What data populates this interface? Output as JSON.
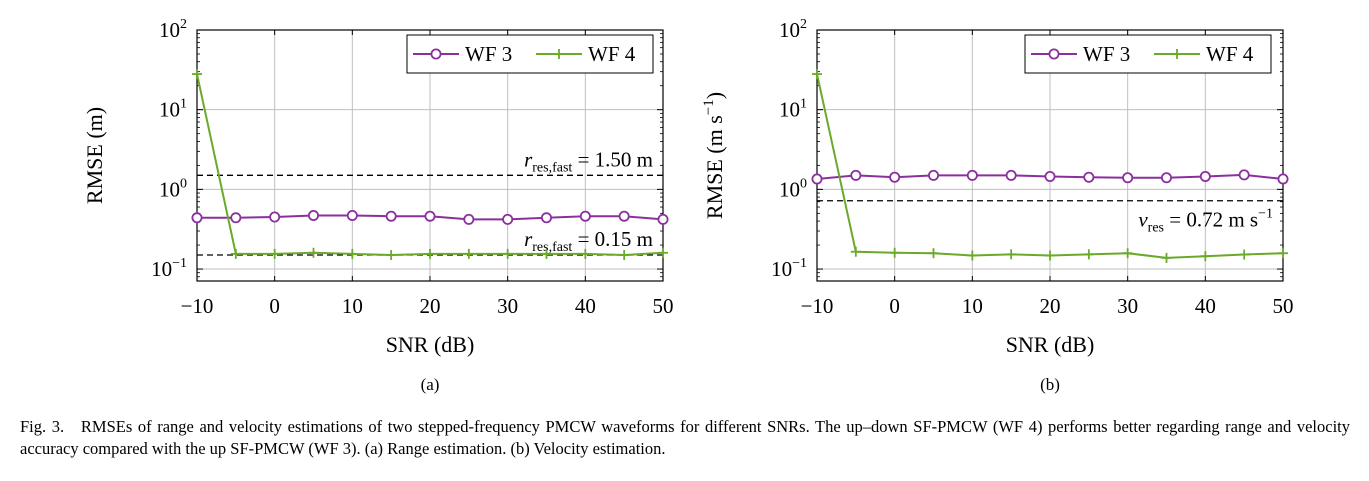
{
  "figure_label": "Fig. 3.",
  "caption": "RMSEs of range and velocity estimations of two stepped-frequency PMCW waveforms for different SNRs. The up–down SF-PMCW (WF 4) performs better regarding range and velocity accuracy compared with the up SF-PMCW (WF 3). (a) Range estimation. (b) Velocity estimation.",
  "colors": {
    "wf3": "#8b2f9e",
    "wf4": "#6aaa2a",
    "grid": "#bfbfbf",
    "ref": "#000000"
  },
  "chart_data": [
    {
      "type": "line",
      "panel_label": "(a)",
      "xlabel": "SNR (dB)",
      "ylabel": "RMSE (m)",
      "yscale": "log",
      "xlim": [
        -10,
        50
      ],
      "ylim_log10": [
        -1.15,
        2
      ],
      "grid": true,
      "legend": "top-right",
      "x_ticks": [
        -10,
        0,
        10,
        20,
        30,
        40,
        50
      ],
      "x_tick_labels": [
        "−10",
        "0",
        "10",
        "20",
        "30",
        "40",
        "50"
      ],
      "y_ticks": [
        {
          "value": 100,
          "base": "10",
          "exp": "2"
        },
        {
          "value": 10,
          "base": "10",
          "exp": "1"
        },
        {
          "value": 1,
          "base": "10",
          "exp": "0"
        },
        {
          "value": 0.1,
          "base": "10",
          "exp": "−1"
        }
      ],
      "x": [
        -10,
        -5,
        0,
        5,
        10,
        15,
        20,
        25,
        30,
        35,
        40,
        45,
        50
      ],
      "series": [
        {
          "name": "WF 3",
          "marker": "circle",
          "values": [
            0.44,
            0.44,
            0.45,
            0.47,
            0.47,
            0.46,
            0.46,
            0.42,
            0.42,
            0.44,
            0.46,
            0.46,
            0.42
          ]
        },
        {
          "name": "WF 4",
          "marker": "plus",
          "values": [
            28,
            0.155,
            0.155,
            0.16,
            0.155,
            0.15,
            0.155,
            0.155,
            0.155,
            0.155,
            0.155,
            0.15,
            0.16
          ]
        }
      ],
      "references": [
        {
          "value": 1.5,
          "var": "r",
          "sub": "res,fast",
          "rhs": "= 1.50 m",
          "label_pos": "above"
        },
        {
          "value": 0.15,
          "var": "r",
          "sub": "res,fast",
          "rhs": "= 0.15 m",
          "label_pos": "above"
        }
      ]
    },
    {
      "type": "line",
      "panel_label": "(b)",
      "xlabel": "SNR (dB)",
      "ylabel": "RMSE (m s",
      "ylabel_sup": "−1",
      "ylabel_end": ")",
      "yscale": "log",
      "xlim": [
        -10,
        50
      ],
      "ylim_log10": [
        -1.15,
        2
      ],
      "grid": true,
      "legend": "top-right",
      "x_ticks": [
        -10,
        0,
        10,
        20,
        30,
        40,
        50
      ],
      "x_tick_labels": [
        "−10",
        "0",
        "10",
        "20",
        "30",
        "40",
        "50"
      ],
      "y_ticks": [
        {
          "value": 100,
          "base": "10",
          "exp": "2"
        },
        {
          "value": 10,
          "base": "10",
          "exp": "1"
        },
        {
          "value": 1,
          "base": "10",
          "exp": "0"
        },
        {
          "value": 0.1,
          "base": "10",
          "exp": "−1"
        }
      ],
      "x": [
        -10,
        -5,
        0,
        5,
        10,
        15,
        20,
        25,
        30,
        35,
        40,
        45,
        50
      ],
      "series": [
        {
          "name": "WF 3",
          "marker": "circle",
          "values": [
            1.35,
            1.5,
            1.42,
            1.5,
            1.5,
            1.5,
            1.45,
            1.42,
            1.4,
            1.4,
            1.45,
            1.52,
            1.35
          ]
        },
        {
          "name": "WF 4",
          "marker": "plus",
          "values": [
            28,
            0.165,
            0.16,
            0.158,
            0.148,
            0.153,
            0.148,
            0.153,
            0.158,
            0.138,
            0.145,
            0.152,
            0.158
          ]
        }
      ],
      "references": [
        {
          "value": 0.72,
          "var": "v",
          "sub": "res",
          "rhs": "= 0.72 m s",
          "rhs_sup": "−1",
          "label_pos": "below"
        }
      ]
    }
  ]
}
